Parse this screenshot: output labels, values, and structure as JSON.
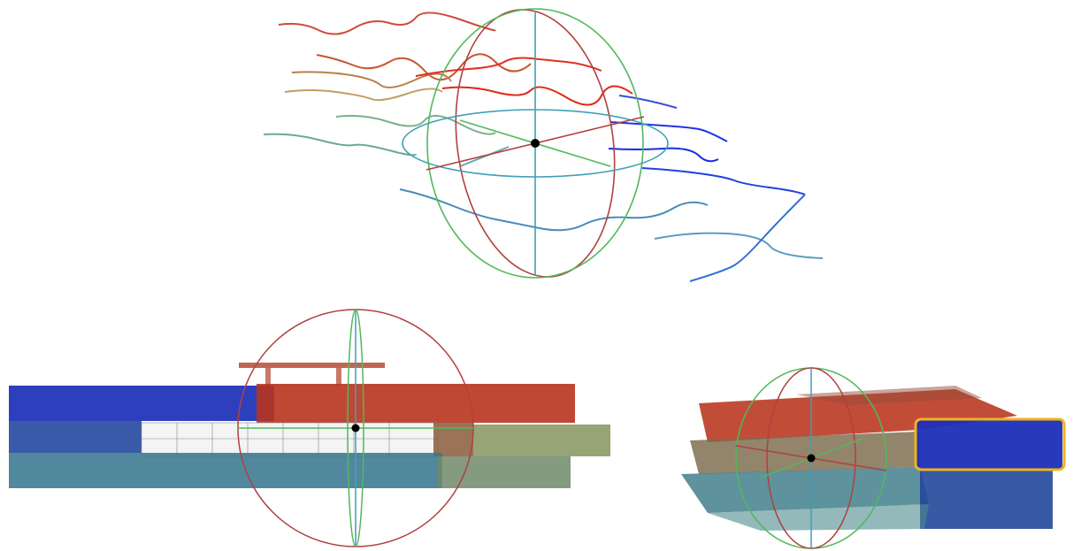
{
  "figure": {
    "panels": [
      {
        "id": "top",
        "view": "trajectory-scan-lines-with-gimbal"
      },
      {
        "id": "bottom-left",
        "view": "building-point-cloud-side"
      },
      {
        "id": "bottom-right",
        "view": "building-point-cloud-oblique"
      }
    ],
    "colors": {
      "ring_red": "#b0413e",
      "ring_green": "#52b85c",
      "ring_teal": "#3f9fb8",
      "center": "#000000",
      "highlight": "#f2b21c",
      "cloud_blue": "#1c2fb8",
      "cloud_red": "#b23520",
      "cloud_teal": "#3a7890",
      "cloud_olive": "#8c9a66",
      "cloud_brown": "#8a5a3a"
    },
    "icons": [
      "gimbal-axes",
      "highlight-box"
    ]
  }
}
